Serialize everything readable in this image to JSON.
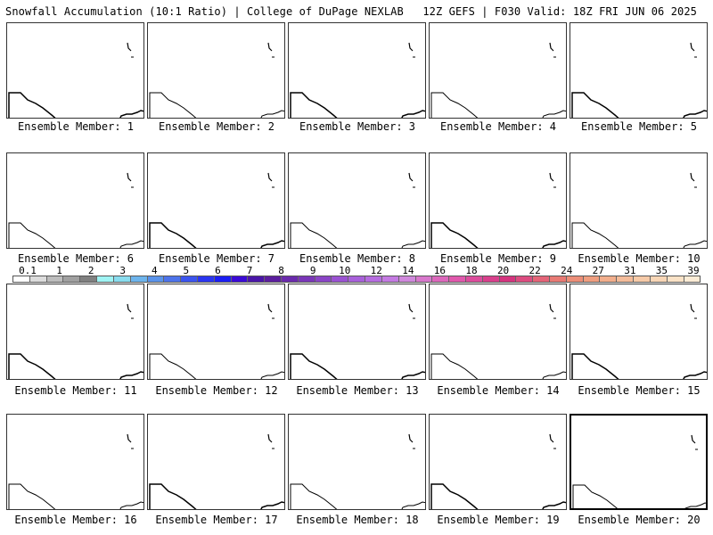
{
  "header": {
    "left": "Snowfall Accumulation (10:1 Ratio) | College of DuPage NEXLAB",
    "right": "12Z GEFS | F030 Valid: 18Z FRI JUN 06 2025"
  },
  "members": [
    {
      "label": "Ensemble Member: 1"
    },
    {
      "label": "Ensemble Member: 2"
    },
    {
      "label": "Ensemble Member: 3"
    },
    {
      "label": "Ensemble Member: 4"
    },
    {
      "label": "Ensemble Member: 5"
    },
    {
      "label": "Ensemble Member: 6"
    },
    {
      "label": "Ensemble Member: 7"
    },
    {
      "label": "Ensemble Member: 8"
    },
    {
      "label": "Ensemble Member: 9"
    },
    {
      "label": "Ensemble Member: 10"
    },
    {
      "label": "Ensemble Member: 11"
    },
    {
      "label": "Ensemble Member: 12"
    },
    {
      "label": "Ensemble Member: 13"
    },
    {
      "label": "Ensemble Member: 14"
    },
    {
      "label": "Ensemble Member: 15"
    },
    {
      "label": "Ensemble Member: 16"
    },
    {
      "label": "Ensemble Member: 17"
    },
    {
      "label": "Ensemble Member: 18"
    },
    {
      "label": "Ensemble Member: 19"
    },
    {
      "label": "Ensemble Member: 20",
      "selected": true
    }
  ],
  "colorbar": {
    "ticks": [
      "0.1",
      "1",
      "2",
      "3",
      "4",
      "5",
      "6",
      "7",
      "8",
      "9",
      "10",
      "12",
      "14",
      "16",
      "18",
      "20",
      "22",
      "24",
      "27",
      "31",
      "35",
      "39"
    ],
    "colors": [
      "#ffffff",
      "#dcdcdc",
      "#bdbdbd",
      "#a0a0a0",
      "#808080",
      "#9ff4f4",
      "#89dcee",
      "#6db4ec",
      "#5a93ea",
      "#4d73ea",
      "#3b54ee",
      "#2a35f0",
      "#1b1ef3",
      "#3b0ad6",
      "#4a16a8",
      "#5c1e9e",
      "#6a2aac",
      "#7a36b8",
      "#8a44c6",
      "#9a52d2",
      "#a860da",
      "#b66ce0",
      "#c47ae2",
      "#d088dc",
      "#d878cc",
      "#dc68bc",
      "#e058ac",
      "#dc4c9c",
      "#d8408c",
      "#d4347e",
      "#dc4c80",
      "#e46478",
      "#e87a74",
      "#ec8e78",
      "#ef9e80",
      "#f2ae8c",
      "#f4bc9a",
      "#f6caa8",
      "#f8d6b6",
      "#fae2c6",
      "#fcecd6"
    ]
  }
}
